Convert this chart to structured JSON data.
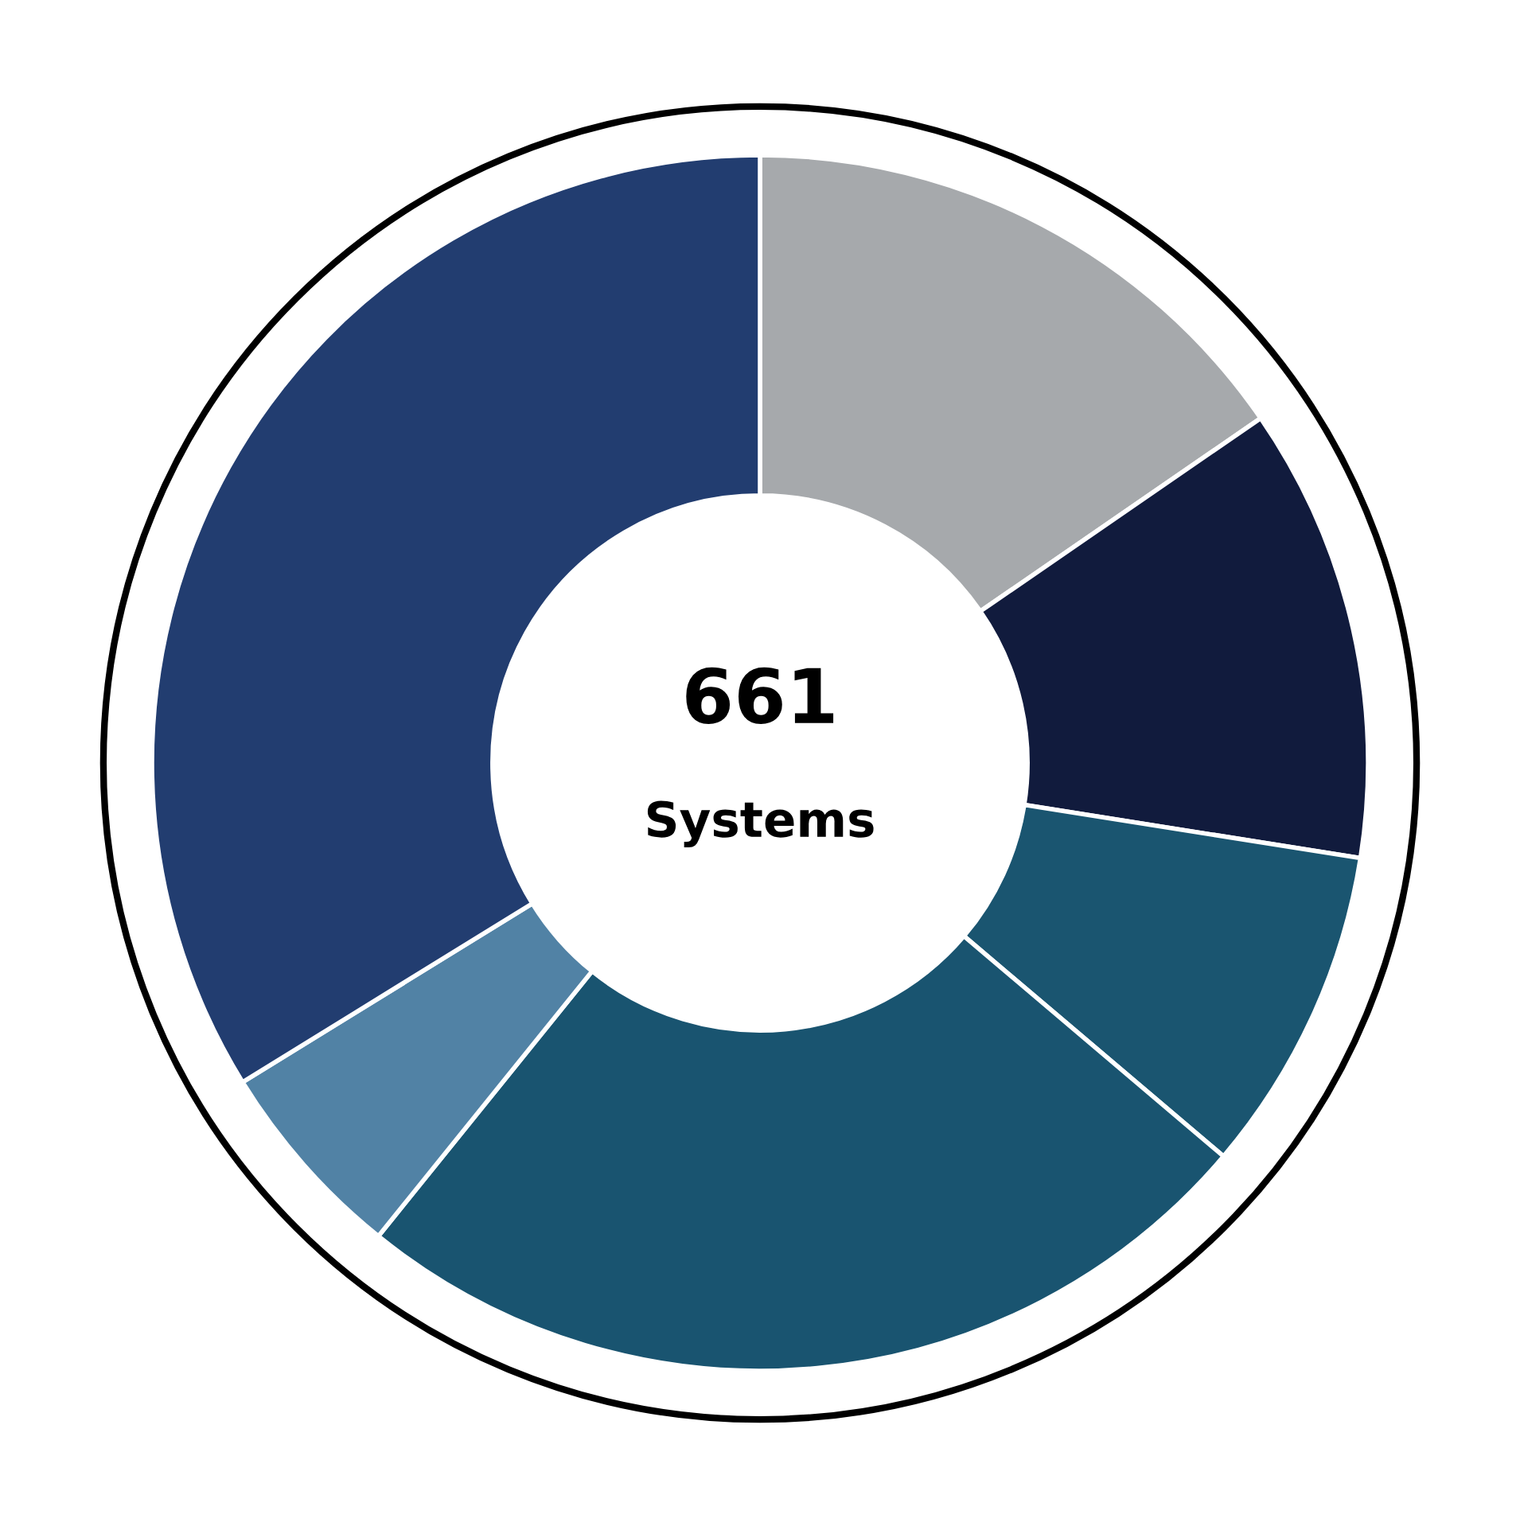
{
  "chart_data": {
    "type": "donut",
    "categories": [
      null,
      null,
      null,
      null,
      null,
      null
    ],
    "values": [
      15.4,
      12.1,
      8.7,
      24.6,
      5.4,
      33.8
    ],
    "colors": [
      "#a6a9ac",
      "#111b3d",
      "#1a5570",
      "#195470",
      "#5182a5",
      "#223d70"
    ],
    "annotations": [
      "661",
      "Systems"
    ],
    "legend": false
  }
}
